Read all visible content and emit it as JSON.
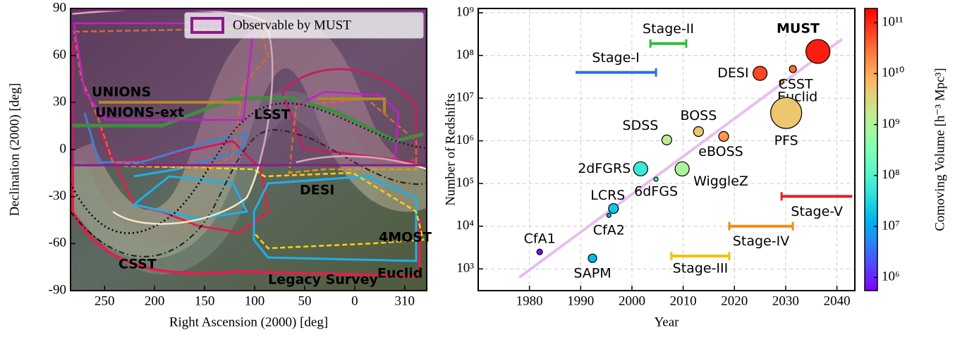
{
  "chart_data": [
    {
      "type": "map",
      "xlabel": "Right Ascension (2000) [deg]",
      "ylabel": "Declination (2000) [deg]",
      "xlim": [
        284,
        -72
      ],
      "ylim": [
        -90,
        90
      ],
      "xticks": [
        250,
        200,
        150,
        100,
        50,
        0,
        {
          "value": -50,
          "label": "310"
        }
      ],
      "yticks": [
        -90,
        -60,
        -30,
        0,
        30,
        60,
        90
      ],
      "regions": [
        {
          "name": "Observable by MUST",
          "color": "#8b1a8b",
          "values": [
            -10,
            90
          ]
        }
      ],
      "annotations": [
        {
          "text": "UNIONS",
          "color": "#c8b400"
        },
        {
          "text": "UNIONS-ext",
          "color": "#e020e0"
        },
        {
          "text": "LSST",
          "color": "#20b020"
        },
        {
          "text": "DESI",
          "color": "#f08c20"
        },
        {
          "text": "4MOST",
          "color": "#ffd700"
        },
        {
          "text": "CSST",
          "color": "#d02040"
        },
        {
          "text": "Euclid",
          "color": "#20a8e8"
        },
        {
          "text": "Legacy Survey",
          "color": "#f5e6c8"
        }
      ]
    },
    {
      "type": "scatter",
      "xlabel": "Year",
      "ylabel": "Number of Redshifts",
      "log_y": true,
      "grid": true,
      "xlim": [
        1970,
        2043.5
      ],
      "ylim": [
        310,
        1260000000
      ],
      "xticks": [
        1980,
        1990,
        2000,
        2010,
        2020,
        2030,
        2040
      ],
      "yticks": [
        {
          "value": 1000,
          "label": "10³"
        },
        {
          "value": 10000,
          "label": "10⁴"
        },
        {
          "value": 100000,
          "label": "10⁵"
        },
        {
          "value": 1000000,
          "label": "10⁶"
        },
        {
          "value": 10000000,
          "label": "10⁷"
        },
        {
          "value": 100000000,
          "label": "10⁸"
        },
        {
          "value": 1000000000,
          "label": "10⁹"
        }
      ],
      "logo": "MUST",
      "points": {
        "labels": [
          "CfA1",
          "SAPM",
          "CfA2",
          "LCRS",
          "2dFGRS",
          "6dFGS",
          "SDSS",
          "WiggleZ",
          "BOSS",
          "eBOSS",
          "DESI",
          "Euclid",
          "CSST",
          "PFS",
          "MUST"
        ],
        "x": [
          1982,
          1992.3,
          1995.5,
          1996.4,
          2001.7,
          2004.7,
          2006.8,
          2009.8,
          2013,
          2017.9,
          2025,
          2029.2,
          2031.4,
          2030.1,
          2036.3
        ],
        "values": [
          2500,
          1780,
          18000,
          26000,
          221000,
          126000,
          1050000,
          220000,
          1650000,
          1270000,
          38000000,
          24000000,
          48000000,
          4500000,
          124000000
        ],
        "sizes": [
          16,
          36,
          9,
          49,
          100,
          9,
          49,
          100,
          49,
          49,
          100,
          9,
          25,
          484,
          289
        ],
        "volumes": [
          800000,
          15000000,
          12000000,
          20000000,
          60000000,
          80000000,
          1500000000,
          1000000000,
          5000000000,
          15000000000,
          60000000000,
          12000000000,
          30000000000,
          5000000000,
          120000000000
        ]
      },
      "trend": {
        "x": [
          1978,
          2041
        ],
        "values": [
          630,
          240000000
        ],
        "color": "#e2b4ea"
      },
      "stages": [
        {
          "name": "Stage-I",
          "color": "#2a6fe8",
          "x": [
            1989,
            2004.7
          ],
          "value": 40000000
        },
        {
          "name": "Stage-II",
          "color": "#2ebd3a",
          "x": [
            2003.6,
            2010.6
          ],
          "value": 190000000
        },
        {
          "name": "Stage-III",
          "color": "#f2c200",
          "x": [
            2007.7,
            2019
          ],
          "value": 2000
        },
        {
          "name": "Stage-IV",
          "color": "#f58a10",
          "x": [
            2019,
            2031.4
          ],
          "value": 10000
        },
        {
          "name": "Stage-V",
          "color": "#e0202a",
          "x": [
            2029.2,
            2043
          ],
          "value": 50000
        }
      ],
      "colorbar": {
        "label": "Comoving Volume [h⁻³ Mpc³]",
        "log": true,
        "lim": [
          550000,
          190000000000
        ],
        "colormap": "rainbow",
        "ticks": [
          {
            "value": 1000000,
            "label": "10⁶"
          },
          {
            "value": 10000000,
            "label": "10⁷"
          },
          {
            "value": 100000000,
            "label": "10⁸"
          },
          {
            "value": 1000000000,
            "label": "10⁹"
          },
          {
            "value": 10000000000,
            "label": "10¹⁰"
          },
          {
            "value": 100000000000,
            "label": "10¹¹"
          }
        ]
      }
    }
  ]
}
